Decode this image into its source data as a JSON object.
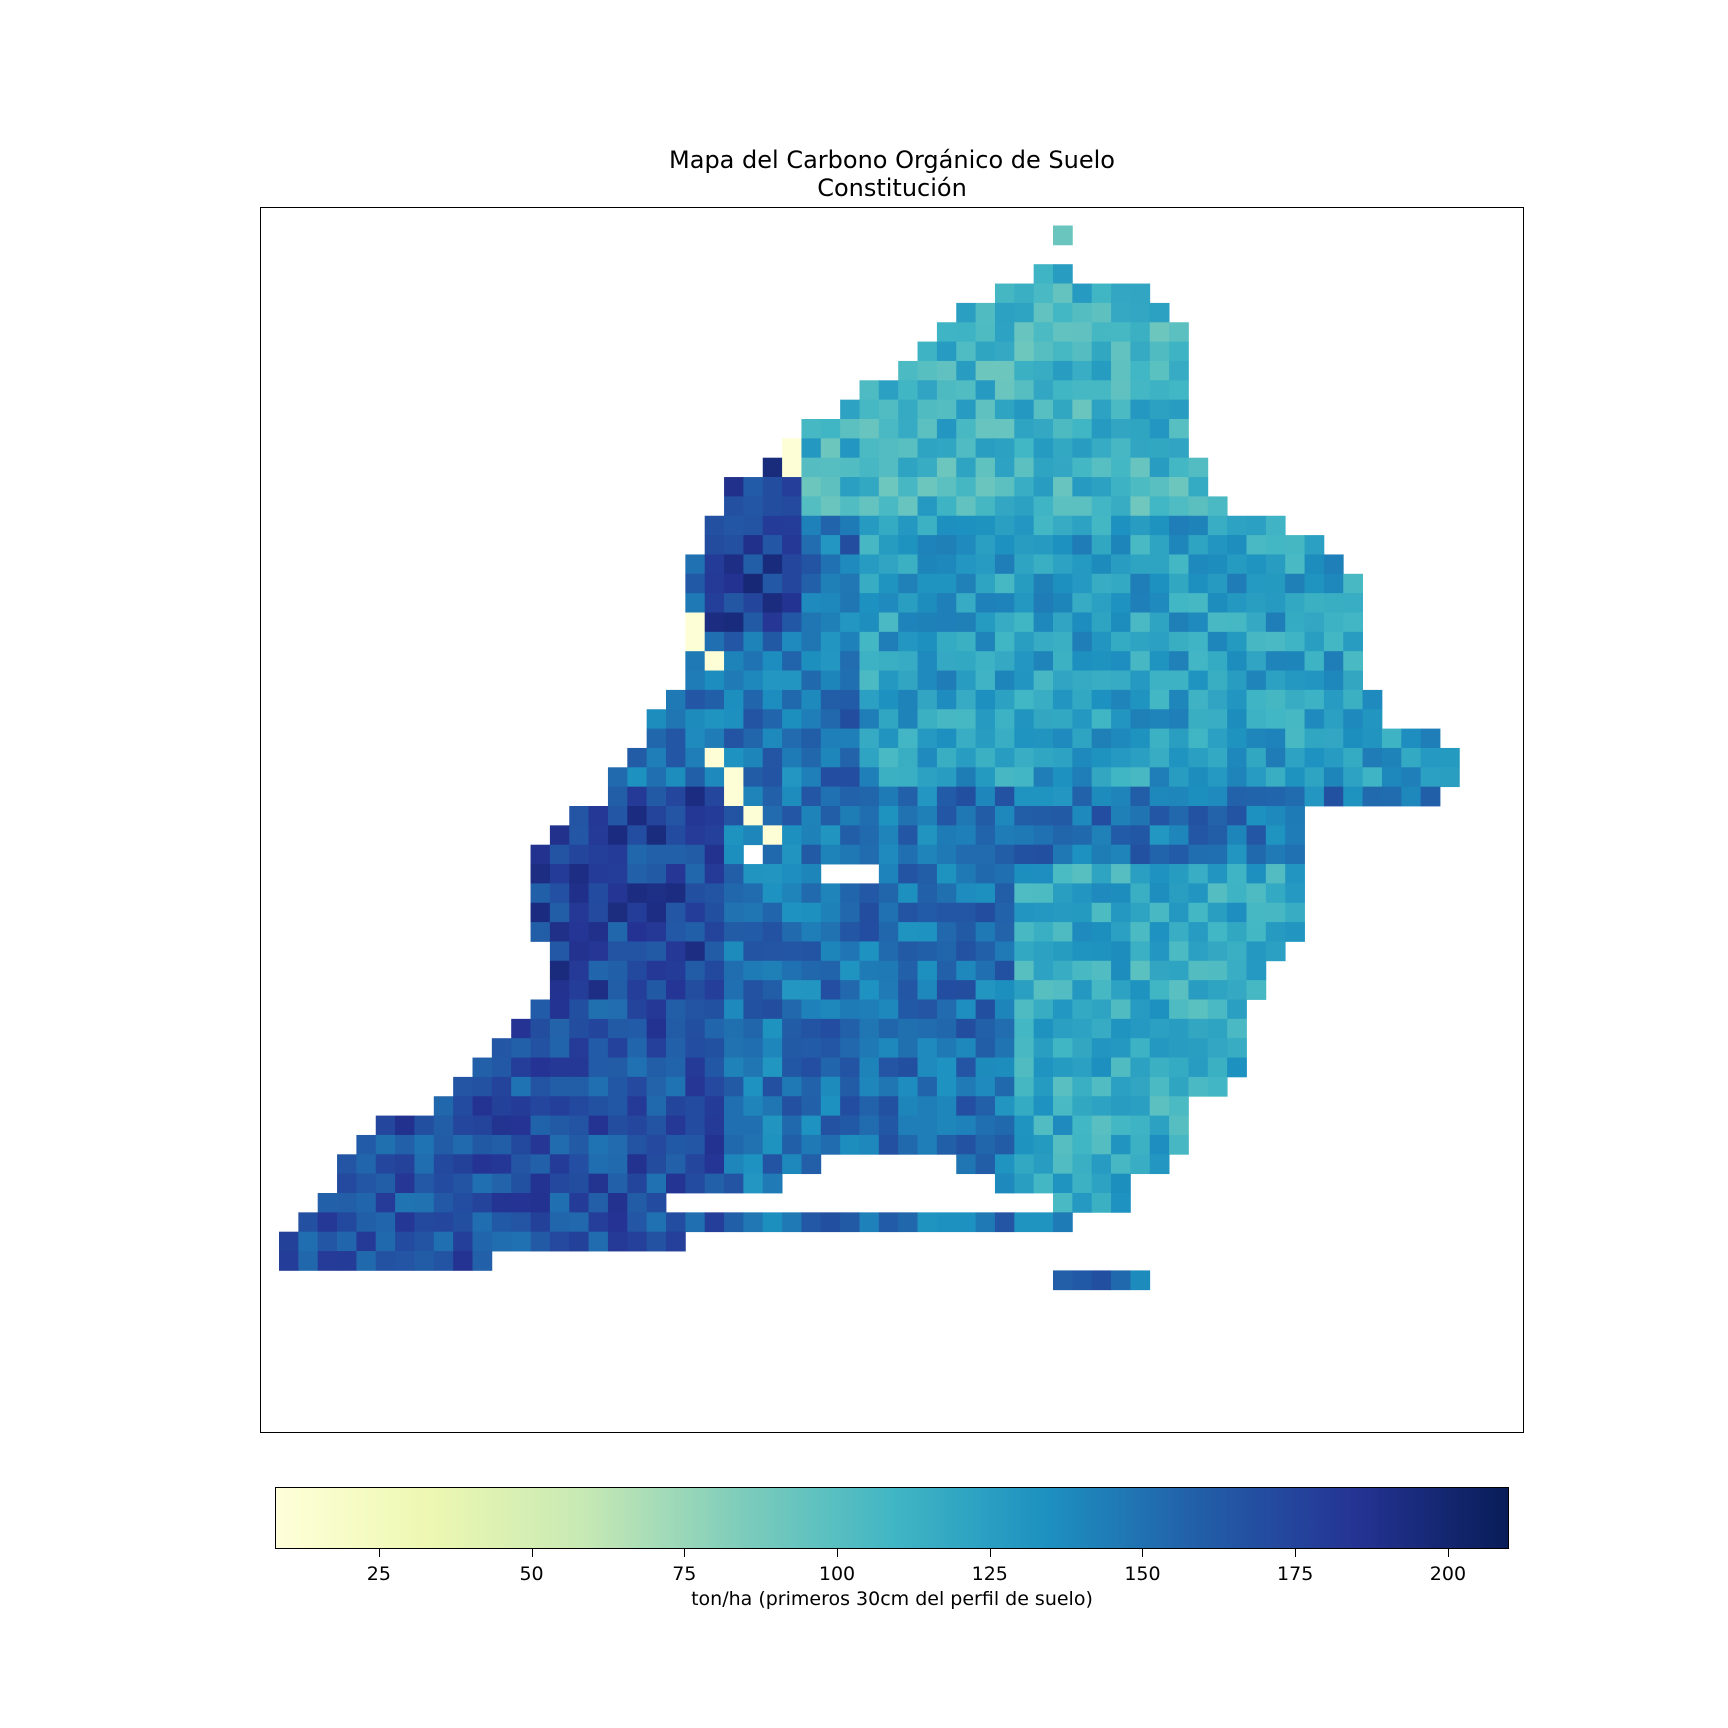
{
  "title_line1": "Mapa del Carbono Orgánico de Suelo",
  "title_line2": "Constitución",
  "colorbar": {
    "label": "ton/ha (primeros 30cm del perfil de suelo)",
    "min": 8,
    "max": 210,
    "ticks": [
      "25",
      "50",
      "75",
      "100",
      "125",
      "150",
      "175",
      "200"
    ],
    "colormap": "YlGnBu",
    "colors": [
      "#ffffd9",
      "#edf8b1",
      "#c7e9b4",
      "#7fcdbb",
      "#41b6c4",
      "#1d91c0",
      "#225ea8",
      "#253494",
      "#081d58"
    ]
  },
  "chart_data": {
    "type": "heatmap",
    "title": "Mapa del Carbono Orgánico de Suelo\nConstitución",
    "units": "ton/ha",
    "value_range": [
      8,
      210
    ],
    "grid_size": [
      64,
      62
    ],
    "regions": [
      {
        "zone": "north-east lobe",
        "typical_value": 110
      },
      {
        "zone": "north-west edge",
        "typical_value": 175
      },
      {
        "zone": "center",
        "typical_value": 150
      },
      {
        "zone": "south-west arm",
        "typical_value": 170
      },
      {
        "zone": "south-east lobe",
        "typical_value": 115
      },
      {
        "zone": "coastal gaps (north-west)",
        "typical_value": 10
      }
    ]
  }
}
